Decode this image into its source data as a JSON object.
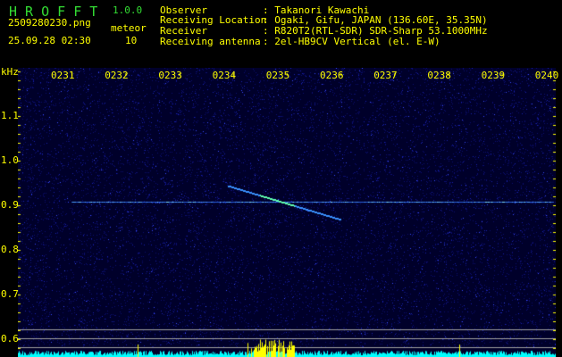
{
  "app": {
    "title": "H R O F F T",
    "version": "1.0.0"
  },
  "file": {
    "name": "2509280230.png",
    "datetime": "25.09.28 02:30"
  },
  "meteor": {
    "label": "meteor",
    "count": "10"
  },
  "info": [
    {
      "label": "Observer",
      "value": ": Takanori Kawachi"
    },
    {
      "label": "Receiving Location",
      "value": ": Ogaki, Gifu, JAPAN (136.60E, 35.35N)"
    },
    {
      "label": "Receiver",
      "value": ": R820T2(RTL-SDR) SDR-Sharp 53.1000MHz"
    },
    {
      "label": "Receiving antenna",
      "value": ": 2el-HB9CV Vertical (el. E-W)"
    }
  ],
  "axis": {
    "y_unit": "kHz",
    "y_ticks": [
      "1.1",
      "1.0",
      "0.9",
      "0.8",
      "0.7",
      "0.6"
    ],
    "x_ticks": [
      "0231",
      "0232",
      "0233",
      "0234",
      "0235",
      "0236",
      "0237",
      "0238",
      "0239",
      "0240"
    ]
  },
  "colors": {
    "text": "#ffff00",
    "title": "#33dd33",
    "background": "#00003a",
    "histogram": "#00ffff",
    "meteor_bar": "#ffff00"
  }
}
